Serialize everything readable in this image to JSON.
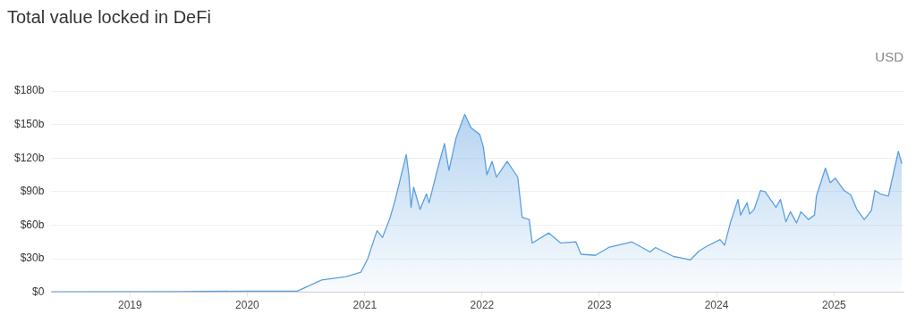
{
  "chart_data": {
    "type": "area",
    "title": "Total value locked in DeFi",
    "annotations": [
      "USD"
    ],
    "x": [
      "2018-05-01",
      "2019-06-01",
      "2020-01-01",
      "2020-06-05",
      "2020-08-20",
      "2020-11-05",
      "2020-12-20",
      "2021-01-10",
      "2021-02-08",
      "2021-02-25",
      "2021-03-20",
      "2021-04-05",
      "2021-05-10",
      "2021-05-18",
      "2021-05-25",
      "2021-06-02",
      "2021-06-22",
      "2021-07-12",
      "2021-07-20",
      "2021-08-18",
      "2021-09-06",
      "2021-09-20",
      "2021-10-12",
      "2021-11-08",
      "2021-11-28",
      "2021-12-25",
      "2022-01-05",
      "2022-01-16",
      "2022-02-01",
      "2022-02-15",
      "2022-03-20",
      "2022-04-22",
      "2022-05-06",
      "2022-05-28",
      "2022-06-06",
      "2022-07-28",
      "2022-09-03",
      "2022-10-20",
      "2022-11-05",
      "2022-12-20",
      "2023-01-30",
      "2023-04-13",
      "2023-06-08",
      "2023-06-25",
      "2023-08-20",
      "2023-10-12",
      "2023-11-08",
      "2023-12-01",
      "2024-01-12",
      "2024-01-26",
      "2024-02-14",
      "2024-03-08",
      "2024-03-16",
      "2024-04-05",
      "2024-04-13",
      "2024-04-27",
      "2024-05-17",
      "2024-05-31",
      "2024-07-04",
      "2024-07-18",
      "2024-08-04",
      "2024-08-18",
      "2024-09-06",
      "2024-09-20",
      "2024-10-13",
      "2024-11-01",
      "2024-11-07",
      "2024-12-05",
      "2024-12-20",
      "2025-01-05",
      "2025-02-01",
      "2025-02-22",
      "2025-03-13",
      "2025-04-05",
      "2025-04-27",
      "2025-05-08",
      "2025-05-25",
      "2025-06-19",
      "2025-07-06",
      "2025-07-20",
      "2025-07-31"
    ],
    "series": [
      {
        "color": "#5b9fe0",
        "values": [
          0.3,
          0.5,
          1,
          1,
          11,
          14,
          18,
          30,
          55,
          49,
          66,
          82,
          123,
          105,
          76,
          94,
          74,
          88,
          80,
          113,
          133,
          109,
          138,
          159,
          147,
          141,
          130,
          105,
          117,
          103,
          117,
          103,
          67,
          65,
          44,
          53,
          44,
          45,
          34,
          33,
          40,
          45,
          36,
          40,
          32,
          29,
          37,
          41,
          47,
          42,
          63,
          83,
          69,
          80,
          70,
          74,
          91,
          90,
          76,
          83,
          63,
          72,
          62,
          72,
          65,
          69,
          86,
          111,
          98,
          102,
          91,
          87,
          74,
          65,
          73,
          91,
          88,
          86,
          108,
          126,
          115
        ]
      }
    ],
    "xlim": [
      "2018-05-01",
      "2025-08-05"
    ],
    "xticks": [
      {
        "value": "2019-01-01",
        "label": "2019"
      },
      {
        "value": "2020-01-01",
        "label": "2020"
      },
      {
        "value": "2021-01-01",
        "label": "2021"
      },
      {
        "value": "2022-01-01",
        "label": "2022"
      },
      {
        "value": "2023-01-01",
        "label": "2023"
      },
      {
        "value": "2024-01-01",
        "label": "2024"
      },
      {
        "value": "2025-01-01",
        "label": "2025"
      }
    ],
    "ylim": [
      0,
      180
    ],
    "yticks": [
      {
        "value": 0,
        "label": "$0"
      },
      {
        "value": 30,
        "label": "$30b"
      },
      {
        "value": 60,
        "label": "$60b"
      },
      {
        "value": 90,
        "label": "$90b"
      },
      {
        "value": 120,
        "label": "$120b"
      },
      {
        "value": 150,
        "label": "$150b"
      },
      {
        "value": 180,
        "label": "$180b"
      }
    ],
    "grid": "y"
  }
}
